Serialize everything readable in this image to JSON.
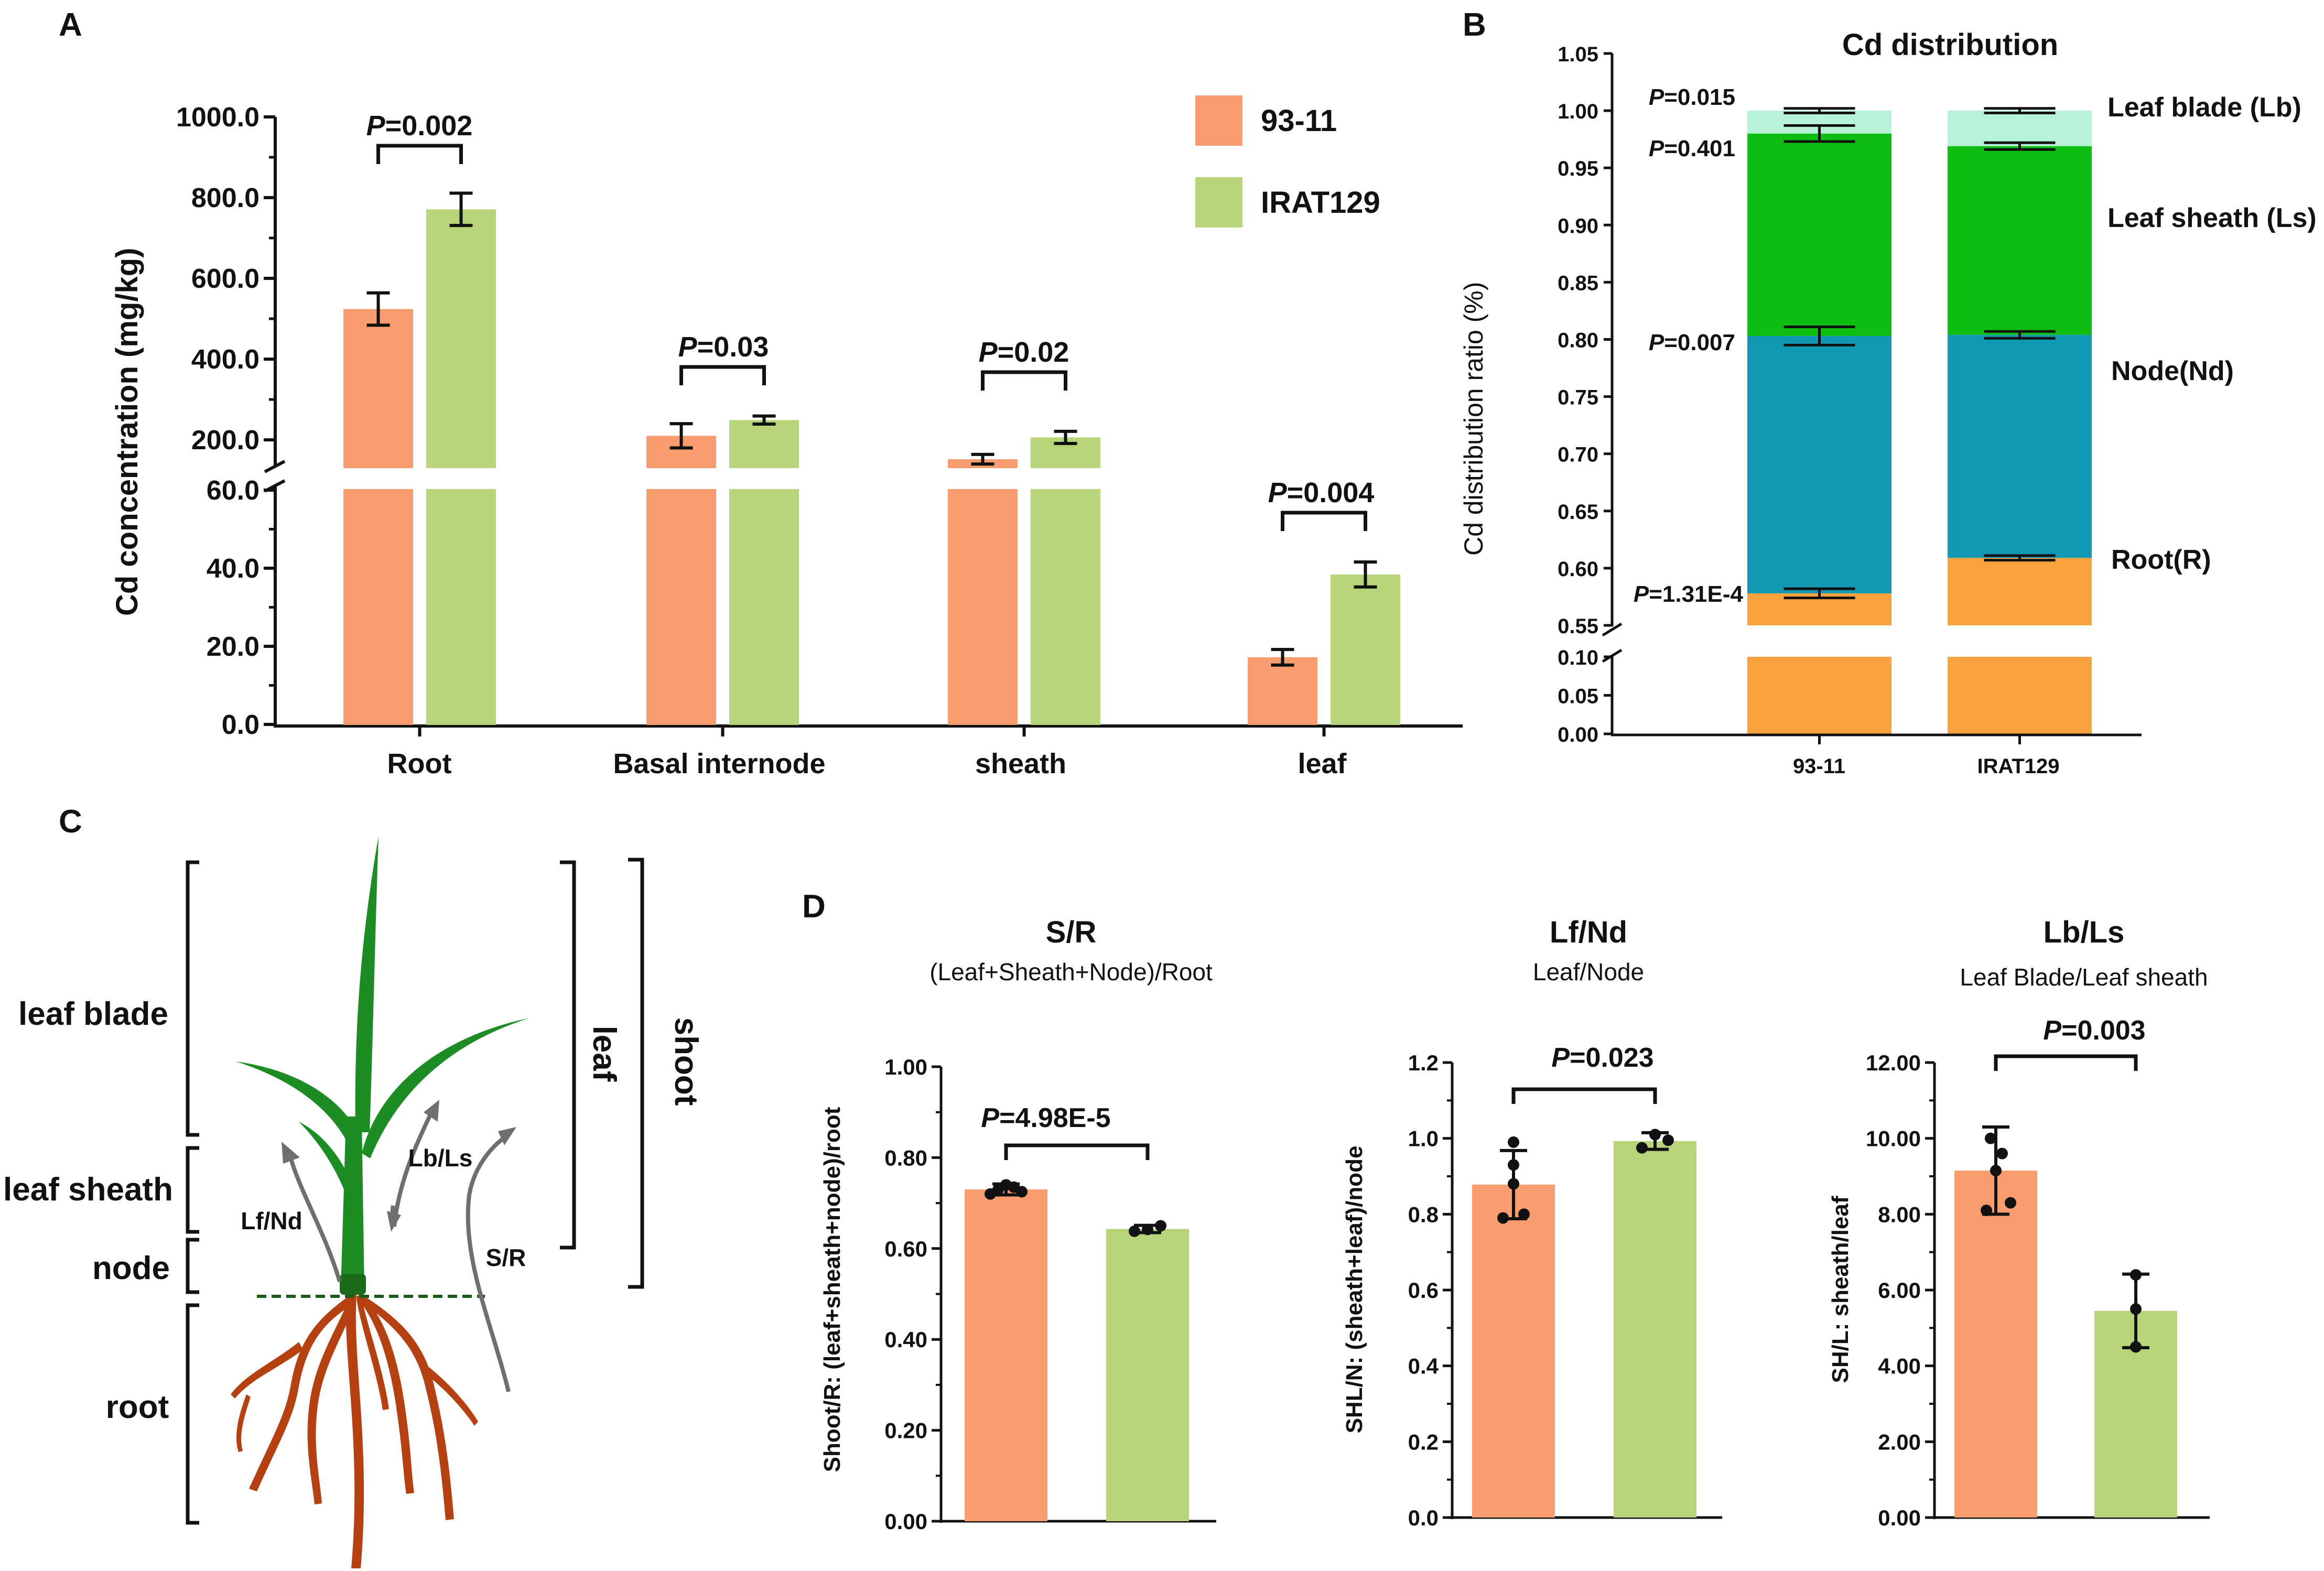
{
  "colors": {
    "s9311": "#f99d70",
    "irat": "#b7d478",
    "lb": "#b6f2d8",
    "ls": "#0dbd12",
    "nd": "#1298b5",
    "r": "#f8a33d",
    "plant_leaf": "#1e8c24",
    "plant_root": "#b54112",
    "arrow": "#6f6f6f",
    "soil": "#1a5a1a"
  },
  "panel_labels": {
    "a": "A",
    "b": "B",
    "c": "C",
    "d": "D"
  },
  "legend": {
    "s9311": "93-11",
    "irat": "IRAT129"
  },
  "pvalue_prefix": "P",
  "chart_data": [
    {
      "type": "bar",
      "panel": "A",
      "ylabel": "Cd concentration (mg/kg)",
      "categories": [
        "Root",
        "Basal internode",
        "sheath",
        "leaf"
      ],
      "series": [
        {
          "name": "93-11",
          "values": [
            524,
            210,
            152,
            17.2
          ],
          "errors": [
            40,
            30,
            12,
            2.0
          ]
        },
        {
          "name": "IRAT129",
          "values": [
            771,
            249,
            206,
            38.4
          ],
          "errors": [
            40,
            10,
            15,
            3.2
          ]
        }
      ],
      "y_axis_lower": {
        "range": [
          0,
          60
        ],
        "ticks": [
          "0.0",
          "20.0",
          "40.0",
          "60.0"
        ],
        "tick_values": [
          0,
          20,
          40,
          60
        ]
      },
      "y_axis_upper": {
        "range": [
          130,
          1000
        ],
        "ticks": [
          "200.0",
          "400.0",
          "600.0",
          "800.0",
          "1000.0"
        ],
        "tick_values": [
          200,
          400,
          600,
          800,
          1000
        ]
      },
      "pvalues": [
        "=0.002",
        "=0.03",
        "=0.02",
        "=0.004"
      ]
    },
    {
      "type": "stacked_bar",
      "panel": "B",
      "title": "Cd distribution",
      "ylabel": "Cd distribution ratio (%)",
      "categories": [
        "93-11",
        "IRAT129"
      ],
      "segments": [
        {
          "name": "Root(R)",
          "key": "r",
          "top": [
            0.578,
            0.609
          ],
          "errors": [
            0.004,
            0.002
          ]
        },
        {
          "name": "Node(Nd)",
          "key": "nd",
          "top": [
            0.803,
            0.804
          ],
          "errors": [
            0.008,
            0.003
          ]
        },
        {
          "name": "Leaf sheath (Ls)",
          "key": "ls",
          "top": [
            0.98,
            0.969
          ],
          "errors": [
            0.007,
            0.003
          ]
        },
        {
          "name": "Leaf blade (Lb)",
          "key": "lb",
          "top": [
            1.0,
            1.0
          ],
          "errors": [
            0.002,
            0.002
          ]
        }
      ],
      "y_axis_lower": {
        "range": [
          0,
          0.1
        ],
        "ticks": [
          "0.00",
          "0.05",
          "0.10"
        ],
        "tick_values": [
          0,
          0.05,
          0.1
        ]
      },
      "y_axis_upper": {
        "range": [
          0.55,
          1.05
        ],
        "ticks": [
          "0.55",
          "0.60",
          "0.65",
          "0.70",
          "0.75",
          "0.80",
          "0.85",
          "0.90",
          "0.95",
          "1.00",
          "1.05"
        ],
        "tick_values": [
          0.55,
          0.6,
          0.65,
          0.7,
          0.75,
          0.8,
          0.85,
          0.9,
          0.95,
          1.0,
          1.05
        ]
      },
      "pvalues": [
        "=0.015",
        "=0.401",
        "=0.007",
        "=1.31E-4"
      ],
      "segment_labels": [
        "Leaf blade (Lb)",
        "Leaf sheath (Ls)",
        "Node(Nd)",
        "Root(R)"
      ]
    },
    {
      "type": "bar",
      "panel": "D1",
      "title": "S/R",
      "subtitle": "(Leaf+Sheath+Node)/Root",
      "ylabel": "Shoot/R: (leaf+sheath+node)/root",
      "categories": [
        "93-11",
        "IRAT129"
      ],
      "values": [
        0.73,
        0.643
      ],
      "errors": [
        0.012,
        0.008
      ],
      "points": [
        [
          0.72,
          0.725,
          0.73,
          0.735,
          0.74
        ],
        [
          0.638,
          0.642,
          0.65
        ]
      ],
      "ylim": [
        0,
        1.0
      ],
      "ticks": [
        "0.00",
        "0.20",
        "0.40",
        "0.60",
        "0.80",
        "1.00"
      ],
      "tick_values": [
        0,
        0.2,
        0.4,
        0.6,
        0.8,
        1.0
      ],
      "pvalue": "=4.98E-5"
    },
    {
      "type": "bar",
      "panel": "D2",
      "title": "Lf/Nd",
      "subtitle": "Leaf/Node",
      "ylabel": "SHL/N: (sheath+leaf)/node",
      "categories": [
        "93-11",
        "IRAT129"
      ],
      "values": [
        0.878,
        0.993
      ],
      "errors": [
        0.09,
        0.022
      ],
      "points": [
        [
          0.79,
          0.8,
          0.88,
          0.93,
          0.99
        ],
        [
          0.975,
          0.995,
          1.01
        ]
      ],
      "ylim": [
        0,
        1.2
      ],
      "ticks": [
        "0.0",
        "0.2",
        "0.4",
        "0.6",
        "0.8",
        "1.0",
        "1.2"
      ],
      "tick_values": [
        0,
        0.2,
        0.4,
        0.6,
        0.8,
        1.0,
        1.2
      ],
      "pvalue": "=0.023"
    },
    {
      "type": "bar",
      "panel": "D3",
      "title": "Lb/Ls",
      "subtitle": "Leaf Blade/Leaf sheath",
      "ylabel": "SH/L: sheath/leaf",
      "categories": [
        "93-11",
        "IRAT129"
      ],
      "values": [
        9.15,
        5.45
      ],
      "errors": [
        1.15,
        0.97
      ],
      "points": [
        [
          8.1,
          8.3,
          9.15,
          9.6,
          10.0
        ],
        [
          4.5,
          5.5,
          6.4
        ]
      ],
      "ylim": [
        0,
        12
      ],
      "ticks": [
        "0.00",
        "2.00",
        "4.00",
        "6.00",
        "8.00",
        "10.00",
        "12.00"
      ],
      "tick_values": [
        0,
        2,
        4,
        6,
        8,
        10,
        12
      ],
      "pvalue": "=0.003"
    }
  ],
  "diagram": {
    "parts": [
      "leaf blade",
      "leaf sheath",
      "node",
      "root"
    ],
    "groups": [
      "leaf",
      "shoot"
    ],
    "arrows": [
      "Lf/Nd",
      "Lb/Ls",
      "S/R"
    ]
  }
}
